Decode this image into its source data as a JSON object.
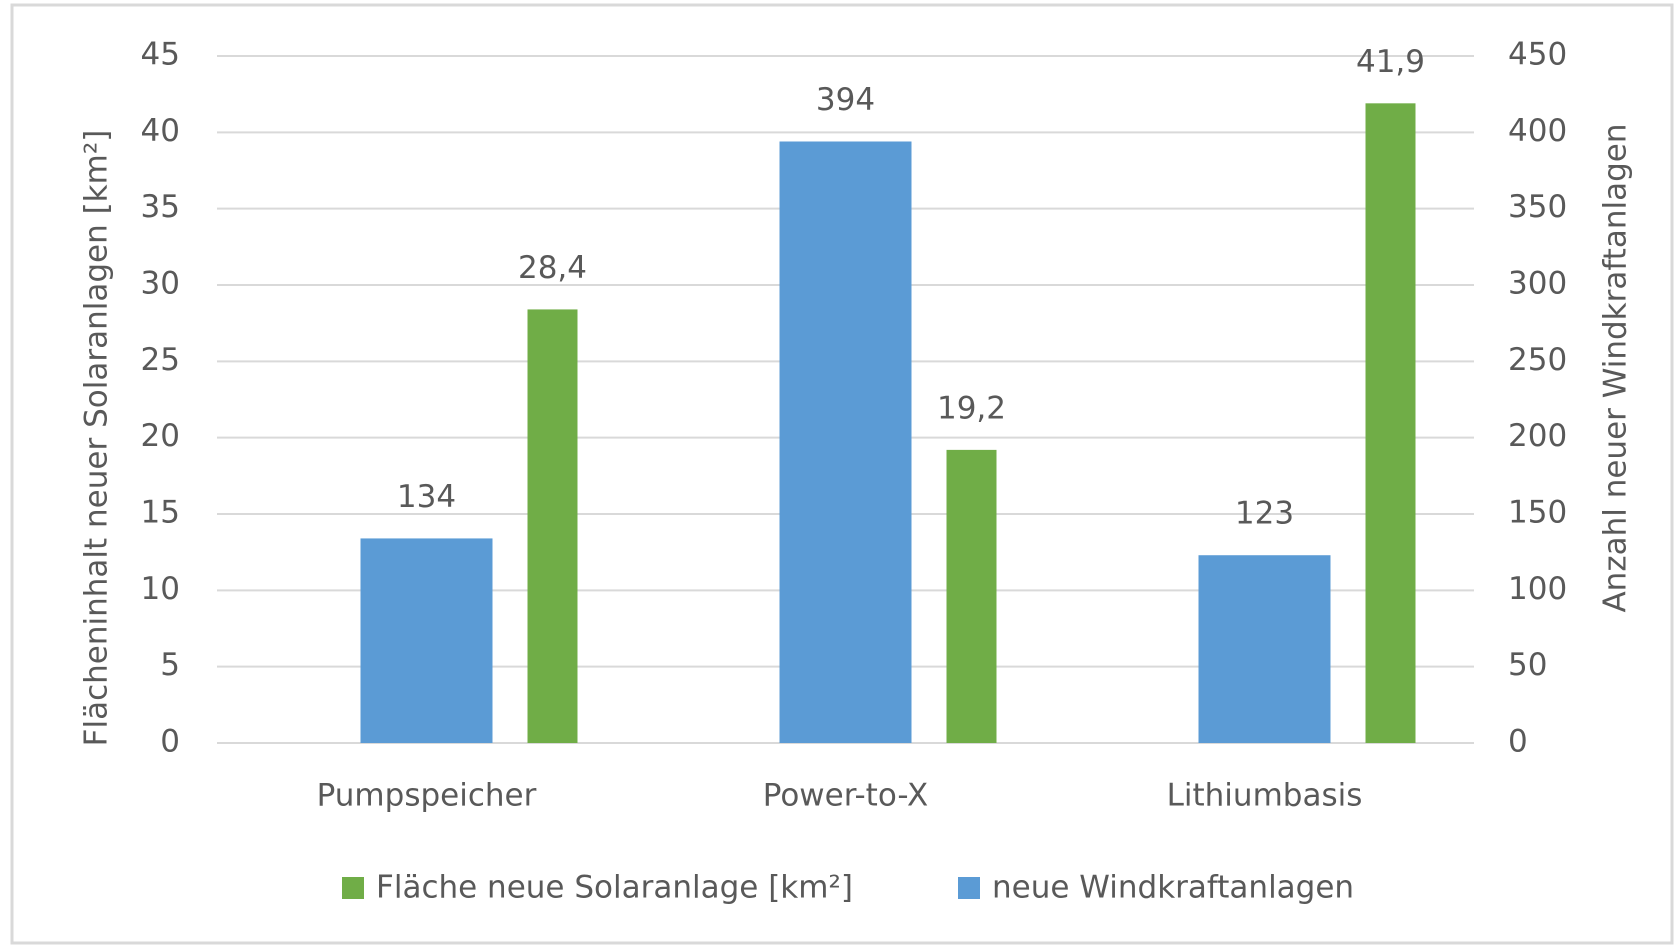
{
  "chart_data": {
    "type": "bar",
    "categories": [
      "Pumpspeicher",
      "Power-to-X",
      "Lithiumbasis"
    ],
    "series": [
      {
        "name": "Fläche neue Solaranlage [km²]",
        "color": "#70ad47",
        "values": [
          28.4,
          19.2,
          41.9
        ],
        "value_labels": [
          "28,4",
          "19,2",
          "41,9"
        ]
      },
      {
        "name": "neue Windkraftanlagen",
        "color": "#5b9bd5",
        "axis": "y2",
        "values": [
          134,
          394,
          123
        ]
      }
    ],
    "ylabel": "Flächeninhalt neuer Solaranlagen [km²]",
    "y2label": "Anzahl neuer Windkraftanlagen",
    "ylim": [
      0,
      45
    ],
    "yticks": [
      0,
      5,
      10,
      15,
      20,
      25,
      30,
      35,
      40,
      45
    ],
    "y2lim": [
      0,
      450
    ],
    "y2ticks": [
      0,
      50,
      100,
      150,
      200,
      250,
      300,
      350,
      400,
      450
    ],
    "grid": true,
    "legend": "bottom"
  }
}
